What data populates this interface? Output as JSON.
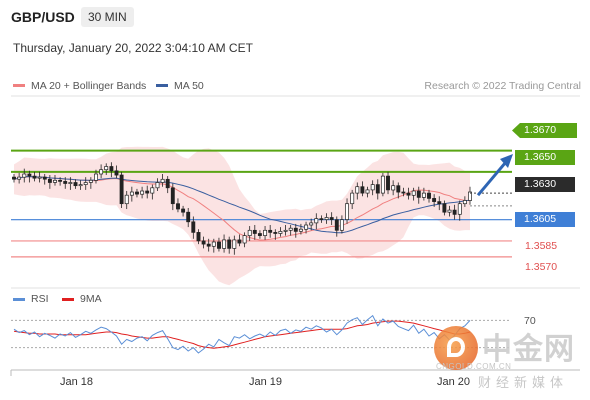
{
  "header": {
    "symbol": "GBP/USD",
    "timeframe": "30 MIN",
    "datetime": "Thursday, January 20, 2022 3:04:10 AM CET"
  },
  "legend": {
    "ma20": "MA 20 + Bollinger Bands",
    "ma50": "MA 50",
    "credit": "Research © 2022 Trading Central",
    "ma20_color": "#f08080",
    "ma50_color": "#3a5fa0"
  },
  "rsi_legend": {
    "rsi": "RSI",
    "ma9": "9MA",
    "rsi_color": "#5b8fd6",
    "ma9_color": "#e02020"
  },
  "colors": {
    "green": "#5aa514",
    "blue": "#3f7fd6",
    "red": "#f28a8a",
    "band": "#fbe0e0"
  },
  "watermark": {
    "brand": "中金网",
    "url": "CNGOLD.COM.CN",
    "sub": "财经新媒体"
  },
  "chart_data": [
    {
      "type": "candlestick",
      "x_ticks": [
        "Jan 18",
        "Jan 19",
        "Jan 20"
      ],
      "ylim": [
        1.3552,
        1.3695
      ],
      "current_price": "1.3630",
      "levels": [
        {
          "label": "1.3670",
          "value": 1.367,
          "kind": "resistance"
        },
        {
          "label": "1.3650",
          "value": 1.365,
          "kind": "resistance"
        },
        {
          "label": "1.3605",
          "value": 1.3605,
          "kind": "pivot"
        },
        {
          "label": "1.3585",
          "value": 1.3585,
          "kind": "support"
        },
        {
          "label": "1.3570",
          "value": 1.357,
          "kind": "support"
        }
      ],
      "close": [
        1.3643,
        1.3645,
        1.3648,
        1.3646,
        1.3644,
        1.3645,
        1.3643,
        1.364,
        1.3642,
        1.3641,
        1.3639,
        1.364,
        1.3637,
        1.3638,
        1.364,
        1.3642,
        1.3648,
        1.3652,
        1.3655,
        1.3651,
        1.3647,
        1.362,
        1.3628,
        1.3631,
        1.3629,
        1.3632,
        1.363,
        1.3635,
        1.364,
        1.3643,
        1.3635,
        1.362,
        1.3615,
        1.3612,
        1.3603,
        1.3593,
        1.3585,
        1.3582,
        1.358,
        1.3584,
        1.3578,
        1.3586,
        1.3578,
        1.3586,
        1.3583,
        1.359,
        1.3595,
        1.3592,
        1.359,
        1.3595,
        1.3593,
        1.3592,
        1.3594,
        1.3595,
        1.3597,
        1.3594,
        1.3596,
        1.36,
        1.3602,
        1.3606,
        1.3605,
        1.3607,
        1.3605,
        1.3595,
        1.3605,
        1.362,
        1.363,
        1.3636,
        1.363,
        1.3633,
        1.3638,
        1.363,
        1.3646,
        1.3633,
        1.3637,
        1.3631,
        1.363,
        1.3628,
        1.3632,
        1.3626,
        1.363,
        1.3625,
        1.3622,
        1.362,
        1.3612,
        1.3614,
        1.361,
        1.362,
        1.3623,
        1.3631
      ]
    },
    {
      "type": "line",
      "title": "RSI",
      "ylim": [
        0,
        100
      ],
      "levels": [
        {
          "label": "70",
          "value": 70
        }
      ],
      "series": [
        {
          "name": "RSI",
          "values": [
            57,
            52,
            55,
            49,
            53,
            46,
            51,
            48,
            44,
            50,
            47,
            52,
            45,
            49,
            54,
            51,
            56,
            60,
            58,
            53,
            47,
            35,
            42,
            39,
            44,
            46,
            40,
            48,
            52,
            55,
            43,
            30,
            27,
            32,
            25,
            30,
            22,
            28,
            35,
            31,
            42,
            37,
            33,
            46,
            44,
            49,
            43,
            47,
            50,
            46,
            53,
            48,
            55,
            57,
            51,
            56,
            54,
            60,
            57,
            62,
            59,
            53,
            57,
            49,
            56,
            66,
            71,
            74,
            64,
            71,
            77,
            62,
            72,
            66,
            69,
            61,
            58,
            55,
            63,
            51,
            57,
            47,
            52,
            43,
            49,
            41,
            48,
            58,
            62,
            70
          ]
        },
        {
          "name": "9MA",
          "values": [
            54,
            53,
            52,
            51,
            51,
            50,
            50,
            50,
            50,
            49,
            49,
            49,
            49,
            49,
            49,
            50,
            51,
            52,
            53,
            53,
            52,
            50,
            49,
            47,
            46,
            45,
            44,
            44,
            45,
            46,
            46,
            44,
            42,
            40,
            38,
            36,
            33,
            31,
            30,
            29,
            30,
            31,
            32,
            34,
            36,
            38,
            40,
            42,
            44,
            46,
            47,
            48,
            49,
            50,
            51,
            52,
            53,
            54,
            55,
            56,
            57,
            57,
            57,
            57,
            57,
            58,
            60,
            62,
            63,
            64,
            66,
            67,
            68,
            69,
            69,
            69,
            68,
            67,
            66,
            64,
            62,
            60,
            58,
            56,
            54,
            52,
            50,
            50,
            51,
            53
          ]
        }
      ]
    }
  ]
}
